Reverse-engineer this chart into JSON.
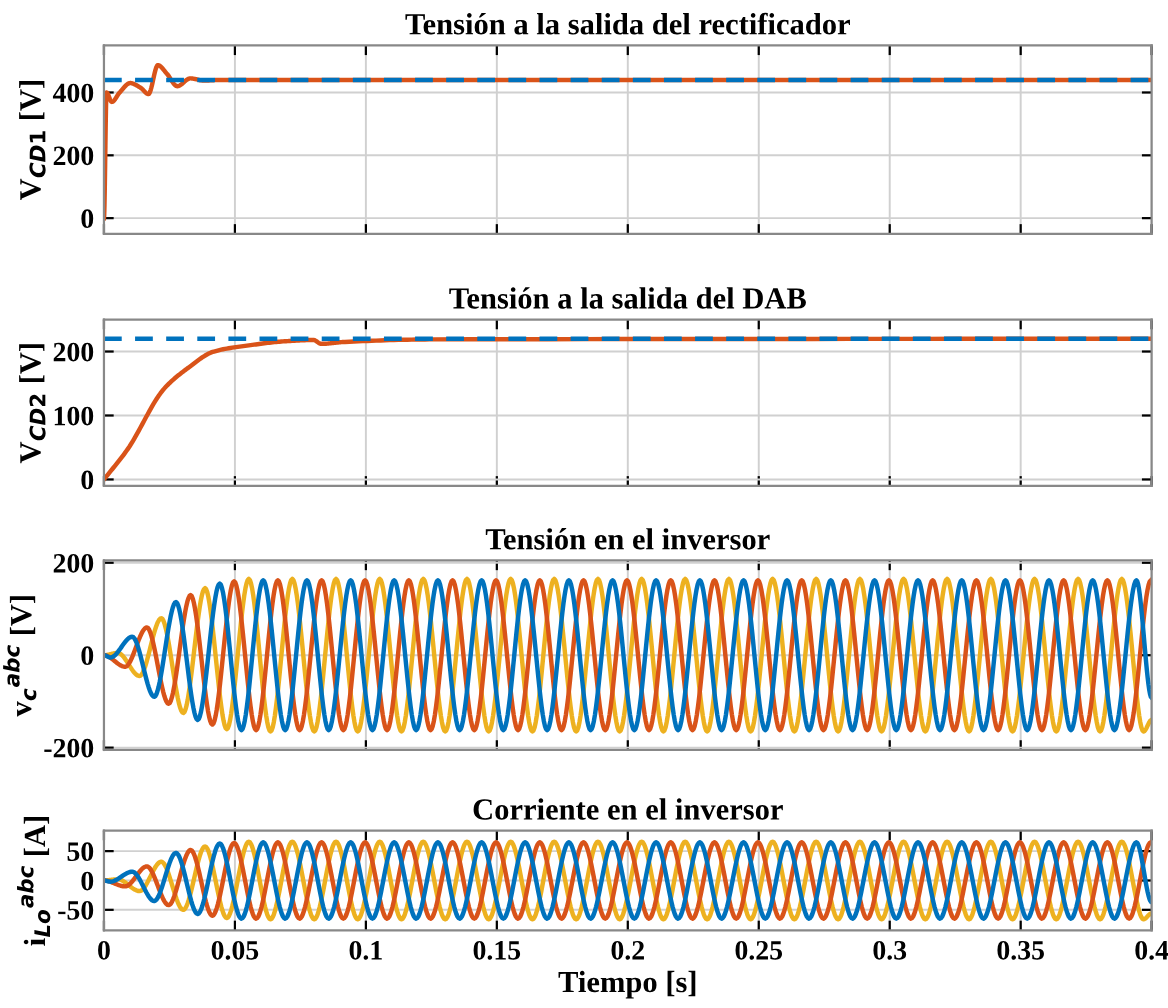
{
  "chart_data": [
    {
      "type": "line",
      "title": "Tensión a la salida del rectificador",
      "ylabel": "V$_{CD1}$ [V]",
      "xlim": [
        0,
        0.4
      ],
      "xticks": [
        0,
        0.05,
        0.1,
        0.15,
        0.2,
        0.25,
        0.3,
        0.35,
        0.4
      ],
      "ylim": [
        -50,
        550
      ],
      "yticks": [
        0,
        200,
        400
      ],
      "grid": true,
      "tick_labels": "y",
      "series": [
        {
          "color": "#0072bd",
          "line_style": "dashed",
          "x": [
            0,
            0.4
          ],
          "values": [
            440,
            440
          ]
        },
        {
          "color": "#d95319",
          "line_style": "solid",
          "x": [
            0,
            0.001,
            0.003,
            0.006,
            0.01,
            0.014,
            0.017,
            0.0206,
            0.024,
            0.028,
            0.033,
            0.038,
            0.045,
            0.05,
            0.4
          ],
          "values": [
            0,
            400,
            370,
            400,
            430,
            415,
            395,
            487,
            460,
            420,
            445,
            438,
            440,
            440,
            440
          ]
        }
      ]
    },
    {
      "type": "line",
      "title": "Tensión a la salida del DAB",
      "ylabel": "V$_{CD2}$ [V]",
      "xlim": [
        0,
        0.4
      ],
      "xticks": [
        0,
        0.05,
        0.1,
        0.15,
        0.2,
        0.25,
        0.3,
        0.35,
        0.4
      ],
      "ylim": [
        -10,
        250
      ],
      "yticks": [
        0,
        100,
        200
      ],
      "grid": true,
      "tick_labels": "y",
      "series": [
        {
          "color": "#0072bd",
          "line_style": "dashed",
          "x": [
            0,
            0.4
          ],
          "values": [
            220,
            220
          ]
        },
        {
          "color": "#d95319",
          "line_style": "solid",
          "x": [
            0,
            0.009,
            0.023,
            0.032,
            0.042,
            0.056,
            0.069,
            0.08,
            0.083,
            0.092,
            0.126,
            0.4
          ],
          "values": [
            0,
            47,
            142,
            174,
            200,
            210,
            216,
            218,
            212,
            215,
            219,
            220
          ]
        }
      ]
    },
    {
      "type": "line",
      "title": "Tensión en el inversor",
      "ylabel": "v$_{c}$$^{abc}$ [V]",
      "xlim": [
        0,
        0.4
      ],
      "xticks": [
        0,
        0.05,
        0.1,
        0.15,
        0.2,
        0.25,
        0.3,
        0.35,
        0.4
      ],
      "ylim": [
        -205,
        205
      ],
      "yticks": [
        -200,
        0,
        200
      ],
      "grid": true,
      "tick_labels": "y",
      "series": [
        {
          "color": "#0072bd",
          "x": [
            0,
            0.0025,
            0.0108,
            0.0192,
            0.0275,
            0.0358,
            0.0442,
            0.0525,
            0.0608,
            0.0692,
            0.0775,
            0.0858,
            0.0942,
            0.1025,
            0.1108,
            0.1192,
            0.1275,
            0.1358,
            0.1442,
            0.1525,
            0.1608,
            0.1692,
            0.1775,
            0.1858,
            0.1942,
            0.2025,
            0.2108,
            0.2192,
            0.2275,
            0.2358,
            0.2442,
            0.2525,
            0.2608,
            0.2692,
            0.2775,
            0.2858,
            0.2942,
            0.3025,
            0.3108,
            0.3192,
            0.3275,
            0.3358,
            0.3442,
            0.3525,
            0.3608,
            0.3692,
            0.3775,
            0.3858,
            0.3942,
            0.4
          ],
          "values": [
            0,
            -5,
            40,
            -90,
            115,
            -140,
            155,
            -162,
            162,
            -162,
            162,
            -162,
            162,
            -162,
            162,
            -162,
            162,
            -162,
            162,
            -162,
            162,
            -162,
            162,
            -162,
            162,
            -162,
            162,
            -162,
            162,
            -162,
            162,
            -162,
            162,
            -162,
            162,
            -162,
            162,
            -162,
            162,
            -162,
            162,
            -162,
            162,
            -162,
            162,
            -162,
            162,
            -162,
            162,
            -92
          ]
        },
        {
          "color": "#d95319",
          "x": [
            0,
            0.0081,
            0.0164,
            0.0247,
            0.0331,
            0.0414,
            0.0497,
            0.0581,
            0.0664,
            0.0747,
            0.0831,
            0.0914,
            0.0997,
            0.1081,
            0.1164,
            0.1247,
            0.1331,
            0.1414,
            0.1497,
            0.1581,
            0.1664,
            0.1747,
            0.1831,
            0.1914,
            0.1997,
            0.2081,
            0.2164,
            0.2247,
            0.2331,
            0.2414,
            0.2497,
            0.2581,
            0.2664,
            0.2747,
            0.2831,
            0.2914,
            0.2997,
            0.3081,
            0.3164,
            0.3247,
            0.3331,
            0.3414,
            0.3497,
            0.3581,
            0.3664,
            0.3747,
            0.3831,
            0.3914,
            0.3997
          ],
          "values": [
            0,
            -25,
            60,
            -105,
            130,
            -150,
            160,
            -162,
            162,
            -162,
            162,
            -162,
            162,
            -162,
            162,
            -162,
            162,
            -162,
            162,
            -162,
            162,
            -162,
            162,
            -162,
            162,
            -162,
            162,
            -162,
            162,
            -162,
            162,
            -162,
            162,
            -162,
            162,
            -162,
            162,
            -162,
            162,
            -162,
            162,
            -162,
            162,
            -162,
            162,
            -162,
            162,
            -162,
            162
          ]
        },
        {
          "color": "#edb120",
          "x": [
            0,
            0.0053,
            0.0136,
            0.0219,
            0.0303,
            0.0386,
            0.0469,
            0.0553,
            0.0636,
            0.0719,
            0.0803,
            0.0886,
            0.0969,
            0.1053,
            0.1136,
            0.1219,
            0.1303,
            0.1386,
            0.1469,
            0.1553,
            0.1636,
            0.1719,
            0.1803,
            0.1886,
            0.1969,
            0.2053,
            0.2136,
            0.2219,
            0.2303,
            0.2386,
            0.2469,
            0.2553,
            0.2636,
            0.2719,
            0.2803,
            0.2886,
            0.2969,
            0.3053,
            0.3136,
            0.3219,
            0.3303,
            0.3386,
            0.3469,
            0.3553,
            0.3636,
            0.3719,
            0.3803,
            0.3886,
            0.3969,
            0.4
          ],
          "values": [
            0,
            5,
            -45,
            80,
            -125,
            145,
            -160,
            165,
            -165,
            165,
            -165,
            165,
            -165,
            165,
            -165,
            165,
            -165,
            165,
            -165,
            165,
            -165,
            165,
            -165,
            165,
            -165,
            165,
            -165,
            165,
            -165,
            165,
            -165,
            165,
            -165,
            165,
            -165,
            165,
            -165,
            165,
            -165,
            165,
            -165,
            165,
            -165,
            165,
            -165,
            165,
            -165,
            165,
            -165,
            -140
          ]
        }
      ]
    },
    {
      "type": "line",
      "title": "Corriente en el inversor",
      "xlabel": "Tiempo [s]",
      "ylabel": "i$_{Lo}$$^{abc}$ [A]",
      "xlim": [
        0,
        0.4
      ],
      "xticks": [
        0,
        0.05,
        0.1,
        0.15,
        0.2,
        0.25,
        0.3,
        0.35,
        0.4
      ],
      "ylim": [
        -85,
        85
      ],
      "yticks": [
        {
          "value": -50,
          "label": "-50"
        },
        0,
        50
      ],
      "grid": true,
      "series": [
        {
          "color": "#0072bd",
          "x": [
            0,
            0.0025,
            0.0108,
            0.0192,
            0.0275,
            0.0358,
            0.0442,
            0.0525,
            0.0608,
            0.0692,
            0.0775,
            0.0858,
            0.0942,
            0.1025,
            0.1108,
            0.1192,
            0.1275,
            0.1358,
            0.1442,
            0.1525,
            0.1608,
            0.1692,
            0.1775,
            0.1858,
            0.1942,
            0.2025,
            0.2108,
            0.2192,
            0.2275,
            0.2358,
            0.2442,
            0.2525,
            0.2608,
            0.2692,
            0.2775,
            0.2858,
            0.2942,
            0.3025,
            0.3108,
            0.3192,
            0.3275,
            0.3358,
            0.3442,
            0.3525,
            0.3608,
            0.3692,
            0.3775,
            0.3858,
            0.3942,
            0.4
          ],
          "values": [
            0,
            -2,
            15,
            -35,
            47,
            -57,
            63,
            -65,
            65,
            -65,
            65,
            -65,
            65,
            -65,
            65,
            -65,
            65,
            -65,
            65,
            -65,
            65,
            -65,
            65,
            -65,
            65,
            -65,
            65,
            -65,
            65,
            -65,
            65,
            -65,
            65,
            -65,
            65,
            -65,
            65,
            -65,
            65,
            -65,
            65,
            -65,
            65,
            -65,
            65,
            -65,
            65,
            -65,
            65,
            -37
          ]
        },
        {
          "color": "#d95319",
          "x": [
            0,
            0.0081,
            0.0164,
            0.0247,
            0.0331,
            0.0414,
            0.0497,
            0.0581,
            0.0664,
            0.0747,
            0.0831,
            0.0914,
            0.0997,
            0.1081,
            0.1164,
            0.1247,
            0.1331,
            0.1414,
            0.1497,
            0.1581,
            0.1664,
            0.1747,
            0.1831,
            0.1914,
            0.1997,
            0.2081,
            0.2164,
            0.2247,
            0.2331,
            0.2414,
            0.2497,
            0.2581,
            0.2664,
            0.2747,
            0.2831,
            0.2914,
            0.2997,
            0.3081,
            0.3164,
            0.3247,
            0.3331,
            0.3414,
            0.3497,
            0.3581,
            0.3664,
            0.3747,
            0.3831,
            0.3914,
            0.3997
          ],
          "values": [
            0,
            -10,
            24,
            -42,
            52,
            -60,
            64,
            -65,
            65,
            -65,
            65,
            -65,
            65,
            -65,
            65,
            -65,
            65,
            -65,
            65,
            -65,
            65,
            -65,
            65,
            -65,
            65,
            -65,
            65,
            -65,
            65,
            -65,
            65,
            -65,
            65,
            -65,
            65,
            -65,
            65,
            -65,
            65,
            -65,
            65,
            -65,
            65,
            -65,
            65,
            -65,
            65,
            -65,
            65
          ]
        },
        {
          "color": "#edb120",
          "x": [
            0,
            0.0053,
            0.0136,
            0.0219,
            0.0303,
            0.0386,
            0.0469,
            0.0553,
            0.0636,
            0.0719,
            0.0803,
            0.0886,
            0.0969,
            0.1053,
            0.1136,
            0.1219,
            0.1303,
            0.1386,
            0.1469,
            0.1553,
            0.1636,
            0.1719,
            0.1803,
            0.1886,
            0.1969,
            0.2053,
            0.2136,
            0.2219,
            0.2303,
            0.2386,
            0.2469,
            0.2553,
            0.2636,
            0.2719,
            0.2803,
            0.2886,
            0.2969,
            0.3053,
            0.3136,
            0.3219,
            0.3303,
            0.3386,
            0.3469,
            0.3553,
            0.3636,
            0.3719,
            0.3803,
            0.3886,
            0.3969,
            0.4
          ],
          "values": [
            0,
            2,
            -18,
            32,
            -50,
            58,
            -64,
            66,
            -66,
            66,
            -66,
            66,
            -66,
            66,
            -66,
            66,
            -66,
            66,
            -66,
            66,
            -66,
            66,
            -66,
            66,
            -66,
            66,
            -66,
            66,
            -66,
            66,
            -66,
            66,
            -66,
            66,
            -66,
            66,
            -66,
            66,
            -66,
            66,
            -66,
            66,
            -66,
            66,
            -66,
            66,
            -66,
            66,
            -66,
            -56
          ]
        }
      ]
    }
  ]
}
